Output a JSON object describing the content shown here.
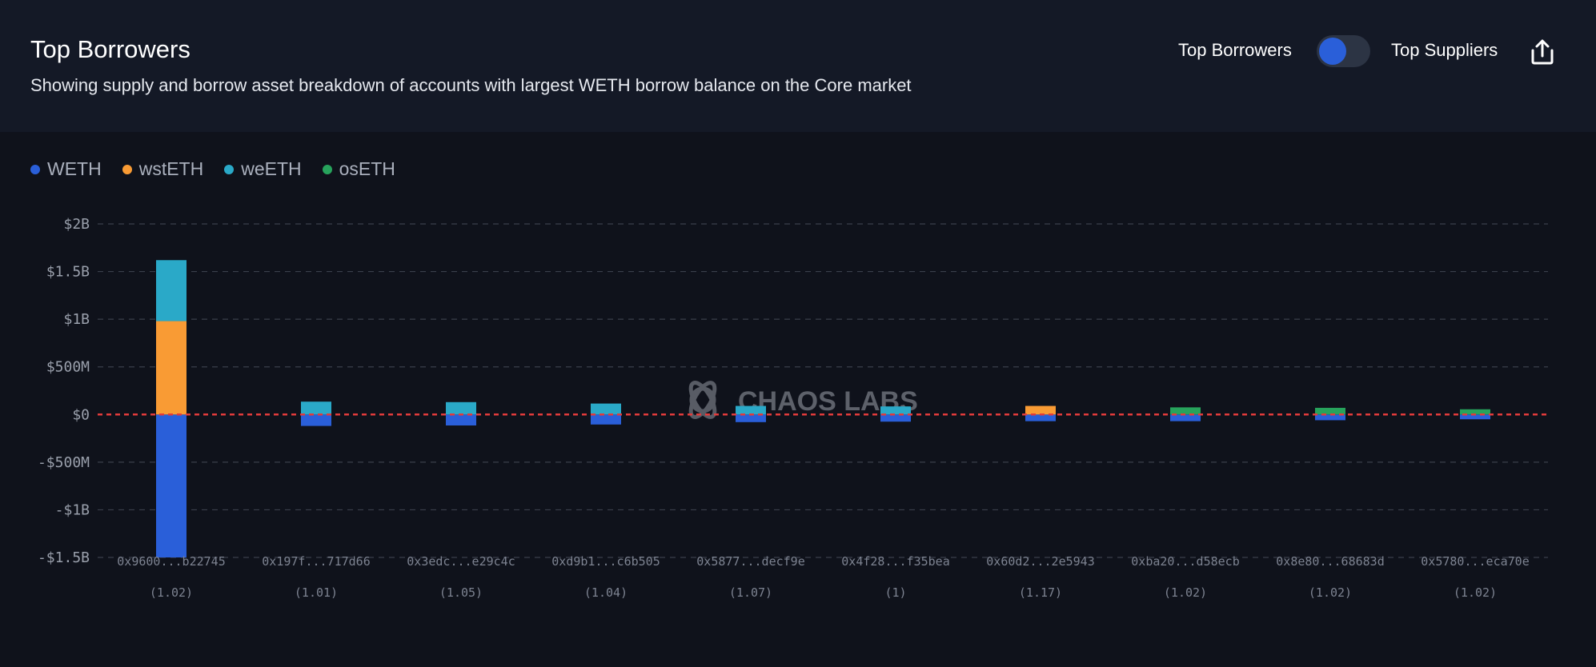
{
  "header": {
    "title": "Top Borrowers",
    "subtitle": "Showing supply and borrow asset breakdown of accounts with largest WETH borrow balance on the Core market",
    "toggle_left_label": "Top Borrowers",
    "toggle_right_label": "Top Suppliers",
    "toggle_state": "Top Borrowers",
    "export_icon": "share-export-icon"
  },
  "watermark": {
    "text": "CHAOS LABS",
    "icon": "chaos-labs-logo-icon"
  },
  "colors": {
    "WETH": "#2a5fd9",
    "wstETH": "#f99b34",
    "weETH": "#2aa9c8",
    "osETH": "#27a35c",
    "zero_line": "#e23b3b",
    "grid": "#3a3f4b"
  },
  "chart_data": {
    "type": "bar",
    "stacked": true,
    "categories": [
      "0x9600...b22745",
      "0x197f...717d66",
      "0x3edc...e29c4c",
      "0xd9b1...c6b505",
      "0x5877...decf9e",
      "0x4f28...f35bea",
      "0x60d2...2e5943",
      "0xba20...d58ecb",
      "0x8e80...68683d",
      "0x5780...eca70e"
    ],
    "sublabels": [
      "(1.02)",
      "(1.01)",
      "(1.05)",
      "(1.04)",
      "(1.07)",
      "(1)",
      "(1.17)",
      "(1.02)",
      "(1.02)",
      "(1.02)"
    ],
    "series": [
      {
        "name": "WETH",
        "values": [
          -1500000000,
          -120000000,
          -115000000,
          -105000000,
          -80000000,
          -75000000,
          -70000000,
          -70000000,
          -60000000,
          -50000000
        ]
      },
      {
        "name": "wstETH",
        "values": [
          980000000,
          0,
          0,
          0,
          0,
          0,
          90000000,
          0,
          0,
          0
        ]
      },
      {
        "name": "weETH",
        "values": [
          640000000,
          135000000,
          130000000,
          115000000,
          90000000,
          85000000,
          0,
          0,
          0,
          0
        ]
      },
      {
        "name": "osETH",
        "values": [
          0,
          0,
          0,
          0,
          0,
          0,
          0,
          75000000,
          70000000,
          55000000
        ]
      }
    ],
    "y_ticks": [
      {
        "value": 2000000000,
        "label": "$2B"
      },
      {
        "value": 1500000000,
        "label": "$1.5B"
      },
      {
        "value": 1000000000,
        "label": "$1B"
      },
      {
        "value": 500000000,
        "label": "$500M"
      },
      {
        "value": 0,
        "label": "$0"
      },
      {
        "value": -500000000,
        "label": "-$500M"
      },
      {
        "value": -1000000000,
        "label": "-$1B"
      },
      {
        "value": -1500000000,
        "label": "-$1.5B"
      }
    ],
    "ylim": [
      -1500000000,
      2000000000
    ],
    "grid": true,
    "legend_position": "top-left"
  }
}
